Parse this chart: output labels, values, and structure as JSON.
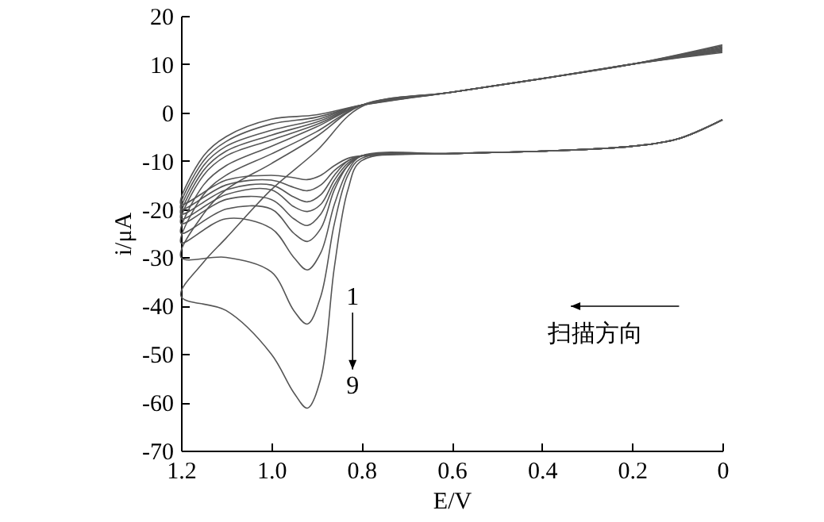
{
  "chart_data": {
    "type": "line",
    "xlabel": "E/V",
    "ylabel": "i/μA",
    "xlim": [
      1.2,
      0
    ],
    "ylim": [
      -70,
      20
    ],
    "xticks": [
      1.2,
      {
        "value": 1,
        "label": "1.0"
      },
      0.8,
      0.6,
      0.4,
      0.2,
      0
    ],
    "yticks": [
      -70,
      -60,
      -50,
      -40,
      -30,
      -20,
      -10,
      0,
      10,
      20
    ],
    "grid": false,
    "marker": "none",
    "line_style": "solid",
    "annotations": [
      "1",
      "9",
      "扫描方向"
    ],
    "series": [
      {
        "color": "#555555",
        "x": [
          0,
          0.2,
          0.4,
          0.6,
          0.8,
          0.9,
          1.0,
          1.1,
          1.15,
          1.2,
          1.1,
          1.0,
          0.95,
          0.92,
          0.89,
          0.86,
          0.83,
          0.8,
          0.6,
          0.4,
          0.2,
          0.1,
          0
        ],
        "values": [
          14,
          10,
          7,
          4.2,
          1.5,
          -0.5,
          -1.4,
          -5,
          -9,
          -19,
          -14,
          -13,
          -13.5,
          -13.9,
          -13,
          -11,
          -9.5,
          -9,
          -8.5,
          -8,
          -7,
          -5.5,
          -1.5
        ]
      },
      {
        "color": "#555555",
        "x": [
          0,
          0.2,
          0.4,
          0.6,
          0.8,
          0.9,
          1.0,
          1.1,
          1.15,
          1.2,
          1.1,
          1.0,
          0.95,
          0.92,
          0.89,
          0.86,
          0.83,
          0.8,
          0.6,
          0.4,
          0.2,
          0.1,
          0
        ],
        "values": [
          13.8,
          10,
          7,
          4.2,
          1.5,
          -1,
          -2.4,
          -6,
          -10,
          -20,
          -15,
          -14,
          -15.5,
          -16.2,
          -15,
          -12,
          -10,
          -9,
          -8.5,
          -8,
          -7,
          -5.5,
          -1.5
        ]
      },
      {
        "color": "#555555",
        "x": [
          0,
          0.2,
          0.4,
          0.6,
          0.8,
          0.9,
          1.0,
          1.1,
          1.15,
          1.2,
          1.1,
          1.0,
          0.95,
          0.92,
          0.89,
          0.86,
          0.83,
          0.8,
          0.6,
          0.4,
          0.2,
          0.1,
          0
        ],
        "values": [
          13.6,
          10,
          7,
          4.2,
          1.5,
          -1.5,
          -3.7,
          -7,
          -11,
          -21,
          -16,
          -15,
          -17.5,
          -18.5,
          -17,
          -13,
          -10,
          -9,
          -8.5,
          -8,
          -7,
          -5.5,
          -1.5
        ]
      },
      {
        "color": "#555555",
        "x": [
          0,
          0.2,
          0.4,
          0.6,
          0.8,
          0.9,
          1.0,
          1.1,
          1.15,
          1.2,
          1.1,
          1.0,
          0.95,
          0.92,
          0.89,
          0.86,
          0.83,
          0.8,
          0.6,
          0.4,
          0.2,
          0.1,
          0
        ],
        "values": [
          13.4,
          10,
          7,
          4.2,
          1.5,
          -2,
          -4.7,
          -8,
          -12,
          -22,
          -17,
          -16,
          -19.5,
          -20.5,
          -19,
          -14,
          -10.5,
          -9,
          -8.5,
          -8,
          -7,
          -5.5,
          -1.5
        ]
      },
      {
        "color": "#555555",
        "x": [
          0,
          0.2,
          0.4,
          0.6,
          0.8,
          0.9,
          1.0,
          1.1,
          1.15,
          1.2,
          1.1,
          1.0,
          0.95,
          0.92,
          0.89,
          0.86,
          0.83,
          0.8,
          0.6,
          0.4,
          0.2,
          0.1,
          0
        ],
        "values": [
          13.2,
          10,
          7,
          4.2,
          1.5,
          -2.5,
          -5.7,
          -9,
          -13,
          -23,
          -18,
          -18,
          -22,
          -23.4,
          -21,
          -15,
          -11,
          -9,
          -8.5,
          -8,
          -7,
          -5.5,
          -1.5
        ]
      },
      {
        "color": "#555555",
        "x": [
          0,
          0.2,
          0.4,
          0.6,
          0.8,
          0.9,
          1.0,
          1.1,
          1.15,
          1.2,
          1.1,
          1.0,
          0.95,
          0.92,
          0.89,
          0.86,
          0.83,
          0.8,
          0.6,
          0.4,
          0.2,
          0.1,
          0
        ],
        "values": [
          13,
          10,
          7,
          4.2,
          1.5,
          -3,
          -7,
          -11,
          -15,
          -25,
          -20,
          -20,
          -25,
          -26.7,
          -24,
          -16,
          -11,
          -9,
          -8.5,
          -8,
          -7,
          -5.5,
          -1.5
        ]
      },
      {
        "color": "#555555",
        "x": [
          0,
          0.2,
          0.4,
          0.6,
          0.8,
          0.9,
          1.0,
          1.1,
          1.15,
          1.2,
          1.1,
          1.0,
          0.95,
          0.92,
          0.89,
          0.86,
          0.83,
          0.8,
          0.6,
          0.4,
          0.2,
          0.1,
          0
        ],
        "values": [
          12.8,
          10,
          7,
          4.2,
          1.5,
          -4,
          -8.6,
          -13,
          -17,
          -27,
          -22,
          -24,
          -30,
          -32.6,
          -29,
          -19,
          -12,
          -9,
          -8.5,
          -8,
          -7,
          -5.5,
          -1.5
        ]
      },
      {
        "color": "#555555",
        "x": [
          0,
          0.2,
          0.4,
          0.6,
          0.8,
          0.9,
          1.0,
          1.1,
          1.15,
          1.2,
          1.1,
          1.0,
          0.95,
          0.92,
          0.89,
          0.86,
          0.83,
          0.8,
          0.6,
          0.4,
          0.2,
          0.1,
          0
        ],
        "values": [
          12.6,
          10,
          7,
          4.2,
          1.5,
          -5,
          -10.6,
          -16,
          -21,
          -30,
          -30,
          -33,
          -41,
          -43.8,
          -38,
          -23,
          -13,
          -9.5,
          -8.5,
          -8,
          -7,
          -5.5,
          -1.5
        ]
      },
      {
        "color": "#555555",
        "x": [
          0,
          0.2,
          0.4,
          0.6,
          0.8,
          0.9,
          1.0,
          1.1,
          1.15,
          1.2,
          1.1,
          1.0,
          0.95,
          0.92,
          0.89,
          0.86,
          0.83,
          0.8,
          0.6,
          0.4,
          0.2,
          0.1,
          0
        ],
        "values": [
          12.4,
          10,
          7,
          4.2,
          1.2,
          -8,
          -16,
          -26,
          -31,
          -38,
          -41,
          -50,
          -58,
          -61.2,
          -55,
          -32,
          -16,
          -10,
          -8.5,
          -8,
          -7,
          -5.5,
          -1.5
        ]
      }
    ]
  }
}
